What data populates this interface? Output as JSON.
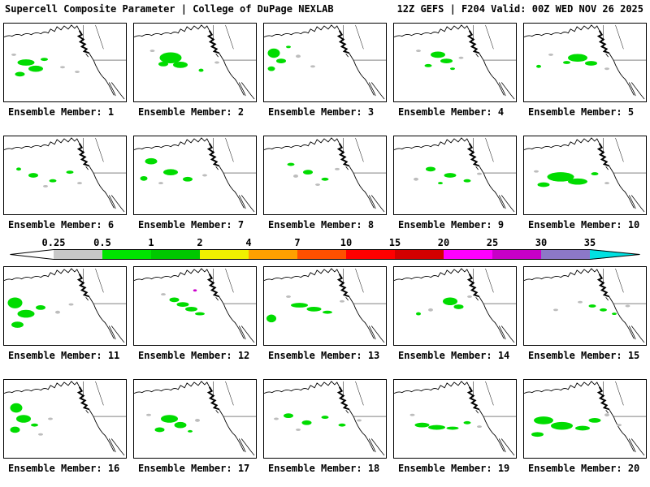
{
  "header": {
    "left": "Supercell Composite Parameter | College of DuPage NEXLAB",
    "right": "12Z GEFS | F204 Valid: 00Z WED NOV 26 2025"
  },
  "colorbar": {
    "labels": [
      "0.25",
      "0.5",
      "1",
      "2",
      "4",
      "7",
      "10",
      "15",
      "20",
      "25",
      "30",
      "35"
    ],
    "left_arrow_color": "#ffffff",
    "right_arrow_color": "#00e1e1",
    "segment_colors": [
      "#c8c8c8",
      "#00e400",
      "#00c800",
      "#f0f000",
      "#ffa000",
      "#ff5000",
      "#ff0000",
      "#d20000",
      "#ff00ff",
      "#c800c8",
      "#8c78c8"
    ]
  },
  "map_colors": {
    "g": "#00dc00",
    "y": "#bdbdbd",
    "m": "#cc00cc",
    "coast": "#000000"
  },
  "panels": [
    {
      "label": "Ensemble Member: 1",
      "blobs": [
        [
          18,
          50,
          7,
          4,
          "g"
        ],
        [
          26,
          58,
          6,
          4,
          "g"
        ],
        [
          13,
          65,
          4,
          3,
          "g"
        ],
        [
          33,
          46,
          3,
          2,
          "g"
        ],
        [
          48,
          56,
          2,
          1.5,
          "y"
        ],
        [
          60,
          62,
          2,
          1.5,
          "y"
        ],
        [
          8,
          40,
          2,
          1.5,
          "y"
        ]
      ]
    },
    {
      "label": "Ensemble Member: 2",
      "blobs": [
        [
          30,
          44,
          9,
          7,
          "g"
        ],
        [
          38,
          53,
          6,
          4,
          "g"
        ],
        [
          24,
          52,
          4,
          3,
          "g"
        ],
        [
          55,
          60,
          2,
          2,
          "g"
        ],
        [
          68,
          50,
          2,
          1.5,
          "y"
        ],
        [
          15,
          35,
          2,
          1.5,
          "y"
        ]
      ]
    },
    {
      "label": "Ensemble Member: 3",
      "blobs": [
        [
          8,
          38,
          5,
          6,
          "g"
        ],
        [
          14,
          48,
          4,
          3,
          "g"
        ],
        [
          6,
          58,
          3,
          3,
          "g"
        ],
        [
          28,
          42,
          2,
          2,
          "y"
        ],
        [
          40,
          55,
          2,
          1.5,
          "y"
        ],
        [
          20,
          30,
          2,
          1.5,
          "g"
        ]
      ]
    },
    {
      "label": "Ensemble Member: 4",
      "blobs": [
        [
          36,
          40,
          6,
          4,
          "g"
        ],
        [
          43,
          48,
          5,
          3,
          "g"
        ],
        [
          28,
          54,
          3,
          2,
          "g"
        ],
        [
          55,
          44,
          2,
          1.5,
          "y"
        ],
        [
          20,
          35,
          2,
          1.5,
          "y"
        ],
        [
          48,
          58,
          2,
          1.5,
          "g"
        ]
      ]
    },
    {
      "label": "Ensemble Member: 5",
      "blobs": [
        [
          44,
          44,
          8,
          5,
          "g"
        ],
        [
          55,
          51,
          5,
          3,
          "g"
        ],
        [
          35,
          50,
          3,
          2,
          "g"
        ],
        [
          12,
          55,
          2,
          2,
          "g"
        ],
        [
          22,
          40,
          2,
          1.5,
          "y"
        ],
        [
          68,
          58,
          2,
          1.5,
          "y"
        ]
      ]
    },
    {
      "label": "Ensemble Member: 6",
      "blobs": [
        [
          24,
          50,
          4,
          3,
          "g"
        ],
        [
          40,
          57,
          3,
          2,
          "g"
        ],
        [
          54,
          46,
          3,
          2,
          "g"
        ],
        [
          12,
          42,
          2,
          2,
          "g"
        ],
        [
          34,
          64,
          2,
          1.5,
          "y"
        ],
        [
          62,
          60,
          2,
          1.5,
          "y"
        ]
      ]
    },
    {
      "label": "Ensemble Member: 7",
      "blobs": [
        [
          14,
          32,
          5,
          4,
          "g"
        ],
        [
          30,
          46,
          6,
          4,
          "g"
        ],
        [
          44,
          55,
          4,
          3,
          "g"
        ],
        [
          8,
          54,
          3,
          3,
          "g"
        ],
        [
          58,
          50,
          2,
          1.5,
          "y"
        ],
        [
          22,
          60,
          2,
          1.5,
          "y"
        ]
      ]
    },
    {
      "label": "Ensemble Member: 8",
      "blobs": [
        [
          36,
          46,
          4,
          3,
          "g"
        ],
        [
          50,
          55,
          3,
          2,
          "g"
        ],
        [
          22,
          36,
          3,
          2,
          "g"
        ],
        [
          26,
          51,
          2,
          2,
          "y"
        ],
        [
          60,
          42,
          2,
          1.5,
          "y"
        ],
        [
          44,
          62,
          2,
          1.5,
          "y"
        ]
      ]
    },
    {
      "label": "Ensemble Member: 9",
      "blobs": [
        [
          30,
          42,
          4,
          3,
          "g"
        ],
        [
          46,
          50,
          5,
          3,
          "g"
        ],
        [
          60,
          57,
          3,
          2,
          "g"
        ],
        [
          18,
          55,
          2,
          2,
          "y"
        ],
        [
          38,
          60,
          2,
          1.5,
          "g"
        ],
        [
          70,
          48,
          2,
          1.5,
          "y"
        ]
      ]
    },
    {
      "label": "Ensemble Member: 10",
      "blobs": [
        [
          30,
          52,
          11,
          6,
          "g"
        ],
        [
          44,
          58,
          8,
          4,
          "g"
        ],
        [
          16,
          62,
          5,
          3,
          "g"
        ],
        [
          58,
          48,
          3,
          2,
          "g"
        ],
        [
          68,
          60,
          2,
          1.5,
          "y"
        ],
        [
          10,
          45,
          2,
          1.5,
          "y"
        ]
      ]
    },
    {
      "label": "Ensemble Member: 11",
      "blobs": [
        [
          9,
          46,
          6,
          7,
          "g"
        ],
        [
          18,
          60,
          7,
          5,
          "g"
        ],
        [
          11,
          74,
          5,
          4,
          "g"
        ],
        [
          30,
          52,
          4,
          3,
          "g"
        ],
        [
          44,
          58,
          2,
          2,
          "y"
        ],
        [
          55,
          48,
          2,
          1.5,
          "y"
        ]
      ]
    },
    {
      "label": "Ensemble Member: 12",
      "blobs": [
        [
          33,
          42,
          4,
          3,
          "g"
        ],
        [
          40,
          48,
          5,
          3,
          "g"
        ],
        [
          47,
          54,
          5,
          3,
          "g"
        ],
        [
          54,
          60,
          4,
          2,
          "g"
        ],
        [
          50,
          30,
          1.5,
          1.5,
          "m"
        ],
        [
          24,
          35,
          2,
          1.5,
          "y"
        ]
      ]
    },
    {
      "label": "Ensemble Member: 13",
      "blobs": [
        [
          29,
          49,
          7,
          3,
          "g"
        ],
        [
          41,
          54,
          6,
          3,
          "g"
        ],
        [
          52,
          58,
          4,
          2,
          "g"
        ],
        [
          6,
          66,
          4,
          5,
          "g"
        ],
        [
          64,
          44,
          2,
          1.5,
          "y"
        ],
        [
          20,
          38,
          2,
          1.5,
          "y"
        ]
      ]
    },
    {
      "label": "Ensemble Member: 14",
      "blobs": [
        [
          46,
          44,
          6,
          5,
          "g"
        ],
        [
          53,
          51,
          4,
          3,
          "g"
        ],
        [
          30,
          55,
          2,
          2,
          "y"
        ],
        [
          20,
          60,
          2,
          2,
          "g"
        ],
        [
          62,
          38,
          2,
          1.5,
          "y"
        ]
      ]
    },
    {
      "label": "Ensemble Member: 15",
      "blobs": [
        [
          56,
          50,
          3,
          2,
          "g"
        ],
        [
          65,
          55,
          3,
          2,
          "g"
        ],
        [
          74,
          60,
          2,
          1.5,
          "g"
        ],
        [
          46,
          45,
          2,
          1.5,
          "y"
        ],
        [
          26,
          55,
          2,
          1.5,
          "y"
        ],
        [
          85,
          50,
          2,
          1.5,
          "y"
        ]
      ]
    },
    {
      "label": "Ensemble Member: 16",
      "blobs": [
        [
          10,
          36,
          5,
          6,
          "g"
        ],
        [
          16,
          50,
          6,
          5,
          "g"
        ],
        [
          9,
          64,
          4,
          4,
          "g"
        ],
        [
          25,
          58,
          3,
          2,
          "g"
        ],
        [
          38,
          50,
          2,
          1.5,
          "y"
        ],
        [
          30,
          70,
          2,
          1.5,
          "y"
        ]
      ]
    },
    {
      "label": "Ensemble Member: 17",
      "blobs": [
        [
          29,
          50,
          7,
          5,
          "g"
        ],
        [
          38,
          58,
          5,
          4,
          "g"
        ],
        [
          21,
          64,
          4,
          3,
          "g"
        ],
        [
          52,
          52,
          2,
          2,
          "y"
        ],
        [
          12,
          45,
          2,
          1.5,
          "y"
        ],
        [
          46,
          66,
          2,
          1.5,
          "g"
        ]
      ]
    },
    {
      "label": "Ensemble Member: 18",
      "blobs": [
        [
          20,
          46,
          4,
          3,
          "g"
        ],
        [
          35,
          55,
          4,
          3,
          "g"
        ],
        [
          50,
          48,
          3,
          2,
          "g"
        ],
        [
          64,
          58,
          3,
          2,
          "g"
        ],
        [
          28,
          64,
          2,
          1.5,
          "y"
        ],
        [
          10,
          50,
          2,
          1.5,
          "y"
        ],
        [
          78,
          52,
          2,
          1.5,
          "y"
        ]
      ]
    },
    {
      "label": "Ensemble Member: 19",
      "blobs": [
        [
          23,
          58,
          6,
          3,
          "g"
        ],
        [
          35,
          61,
          7,
          3,
          "g"
        ],
        [
          48,
          62,
          5,
          2,
          "g"
        ],
        [
          60,
          55,
          3,
          2,
          "g"
        ],
        [
          15,
          45,
          2,
          1.5,
          "y"
        ],
        [
          70,
          60,
          2,
          1.5,
          "y"
        ]
      ]
    },
    {
      "label": "Ensemble Member: 20",
      "blobs": [
        [
          16,
          52,
          8,
          5,
          "g"
        ],
        [
          31,
          59,
          9,
          5,
          "g"
        ],
        [
          48,
          62,
          6,
          3,
          "g"
        ],
        [
          58,
          52,
          5,
          3,
          "g"
        ],
        [
          11,
          70,
          5,
          3,
          "g"
        ],
        [
          68,
          45,
          2,
          2,
          "y"
        ],
        [
          78,
          58,
          2,
          1.5,
          "y"
        ]
      ]
    }
  ]
}
